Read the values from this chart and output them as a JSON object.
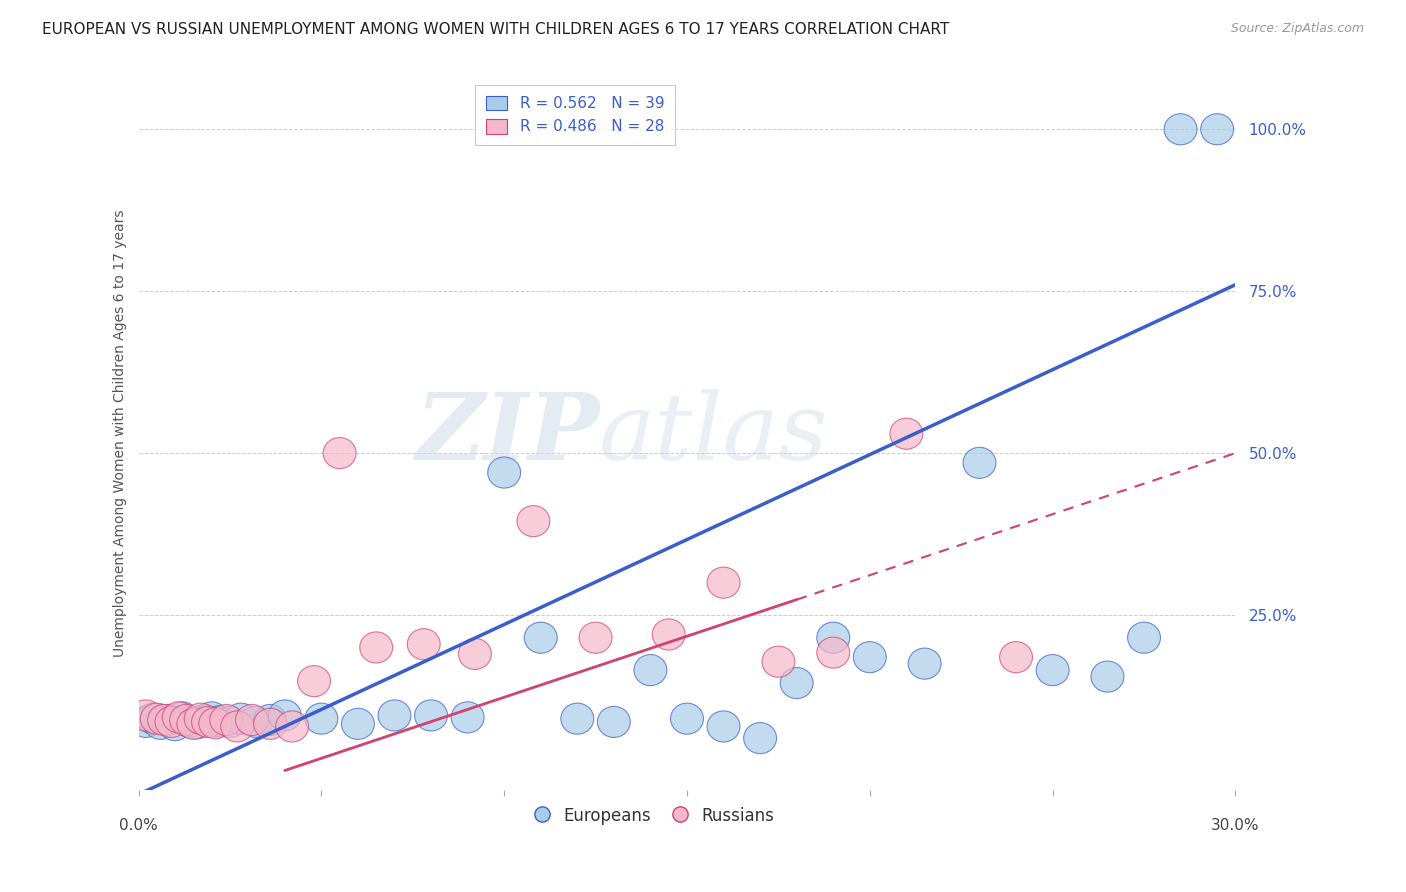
{
  "title": "EUROPEAN VS RUSSIAN UNEMPLOYMENT AMONG WOMEN WITH CHILDREN AGES 6 TO 17 YEARS CORRELATION CHART",
  "source": "Source: ZipAtlas.com",
  "ylabel": "Unemployment Among Women with Children Ages 6 to 17 years",
  "ytick_labels": [
    "100.0%",
    "75.0%",
    "50.0%",
    "25.0%"
  ],
  "ytick_positions": [
    1.0,
    0.75,
    0.5,
    0.25
  ],
  "xlim": [
    0.0,
    0.3
  ],
  "ylim": [
    -0.02,
    1.08
  ],
  "watermark_zip": "ZIP",
  "watermark_atlas": "atlas",
  "legend_european": "R = 0.562   N = 39",
  "legend_russian": "R = 0.486   N = 28",
  "european_color": "#a8cce8",
  "russian_color": "#f4b8cb",
  "line_european_color": "#3a5fcd",
  "line_russian_color": "#d44070",
  "R_N_color": "#3a5fcd",
  "eu_line_x0": -0.005,
  "eu_line_y0": -0.04,
  "eu_line_x1": 0.3,
  "eu_line_y1": 0.76,
  "ru_line_x0": 0.04,
  "ru_line_y0": 0.01,
  "ru_line_x1": 0.3,
  "ru_line_y1": 0.5,
  "european_x": [
    0.002,
    0.004,
    0.006,
    0.008,
    0.01,
    0.012,
    0.014,
    0.016,
    0.018,
    0.02,
    0.022,
    0.025,
    0.028,
    0.032,
    0.036,
    0.04,
    0.05,
    0.06,
    0.07,
    0.08,
    0.09,
    0.1,
    0.11,
    0.12,
    0.13,
    0.14,
    0.15,
    0.16,
    0.17,
    0.18,
    0.19,
    0.2,
    0.215,
    0.23,
    0.25,
    0.265,
    0.275,
    0.285,
    0.295
  ],
  "european_y": [
    0.085,
    0.09,
    0.082,
    0.088,
    0.08,
    0.092,
    0.085,
    0.083,
    0.088,
    0.092,
    0.086,
    0.085,
    0.09,
    0.085,
    0.088,
    0.095,
    0.09,
    0.082,
    0.095,
    0.095,
    0.092,
    0.47,
    0.215,
    0.09,
    0.085,
    0.165,
    0.09,
    0.078,
    0.06,
    0.145,
    0.215,
    0.185,
    0.175,
    0.485,
    0.165,
    0.155,
    0.215,
    1.0,
    1.0
  ],
  "russian_x": [
    0.002,
    0.005,
    0.007,
    0.009,
    0.011,
    0.013,
    0.015,
    0.017,
    0.019,
    0.021,
    0.024,
    0.027,
    0.031,
    0.036,
    0.042,
    0.048,
    0.055,
    0.065,
    0.078,
    0.092,
    0.108,
    0.125,
    0.145,
    0.16,
    0.175,
    0.19,
    0.21,
    0.24
  ],
  "russian_y": [
    0.095,
    0.09,
    0.088,
    0.085,
    0.092,
    0.088,
    0.082,
    0.09,
    0.085,
    0.083,
    0.088,
    0.078,
    0.088,
    0.082,
    0.078,
    0.148,
    0.5,
    0.2,
    0.205,
    0.19,
    0.395,
    0.215,
    0.22,
    0.3,
    0.178,
    0.192,
    0.53,
    0.185
  ],
  "background_color": "#ffffff",
  "grid_color": "#cccccc",
  "title_fontsize": 11,
  "axis_fontsize": 10,
  "legend_fontsize": 11
}
